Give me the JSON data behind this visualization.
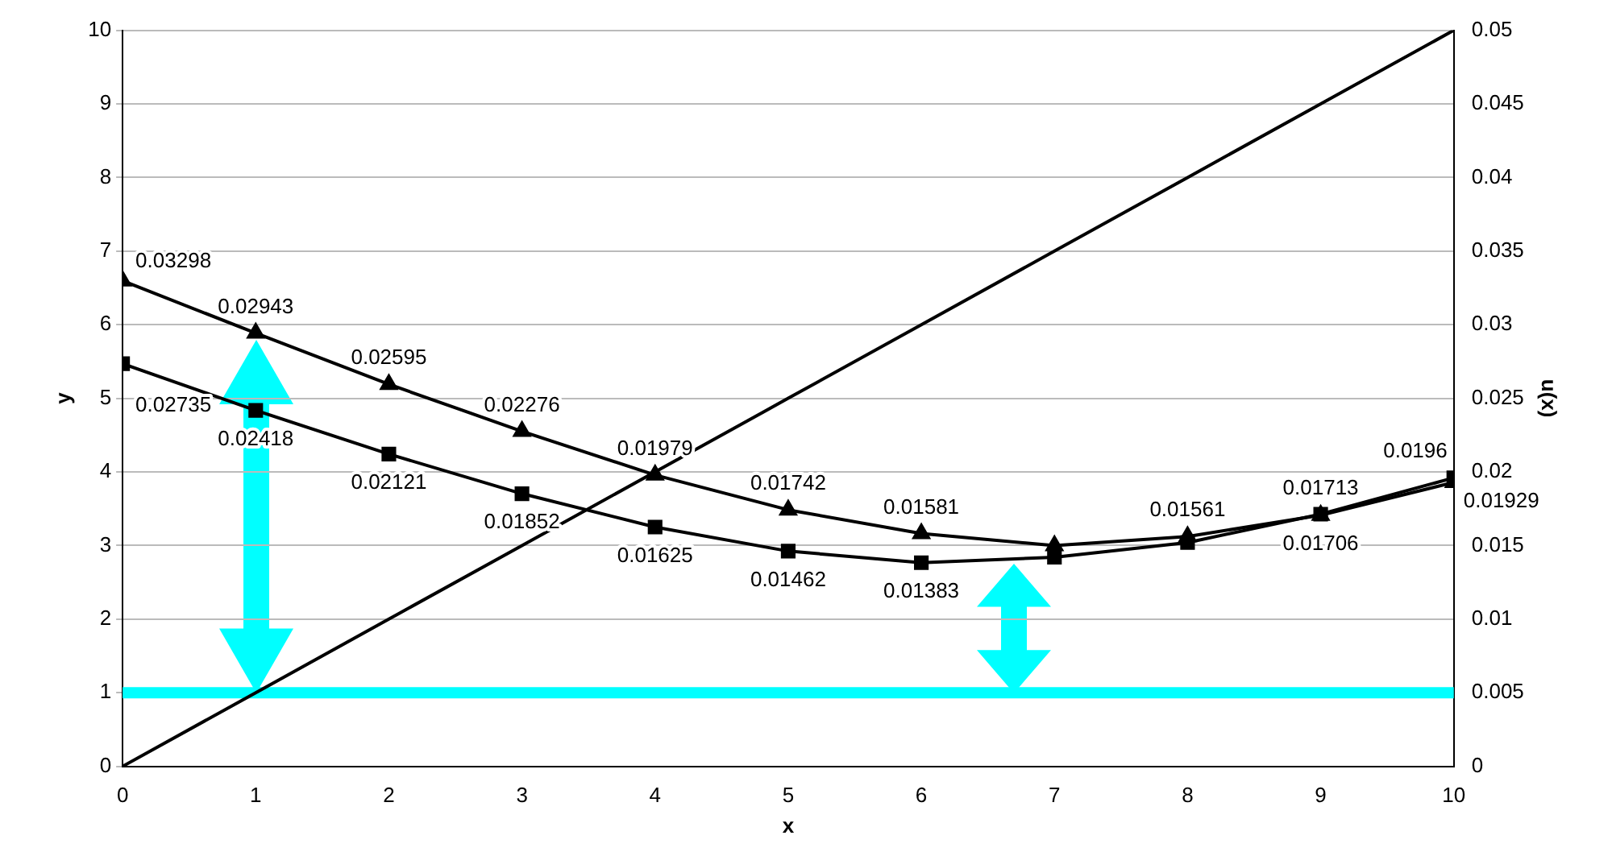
{
  "chart_data": {
    "type": "line",
    "xlabel": "x",
    "ylabel": "y",
    "y2label": "u(x)",
    "xlim": [
      0,
      10
    ],
    "xticks": [
      0,
      1,
      2,
      3,
      4,
      5,
      6,
      7,
      8,
      9,
      10
    ],
    "ylim": [
      0,
      10
    ],
    "yticks": [
      0,
      1,
      2,
      3,
      4,
      5,
      6,
      7,
      8,
      9,
      10
    ],
    "y2lim": [
      0,
      0.05
    ],
    "y2ticks": [
      0,
      0.005,
      0.01,
      0.015,
      0.02,
      0.025,
      0.03,
      0.035,
      0.04,
      0.045,
      0.05
    ],
    "grid": "y",
    "legend": false,
    "line_style": "solid",
    "ref_lines": [
      {
        "axis": "y",
        "value": 1,
        "color": "#00ffff"
      }
    ],
    "series": [
      {
        "color": "#000000",
        "marker": "none",
        "x": [
          0,
          1,
          2,
          3,
          4,
          5,
          6,
          7,
          8,
          9,
          10
        ],
        "values": [
          0,
          1,
          2,
          3,
          4,
          5,
          6,
          7,
          8,
          9,
          10
        ]
      },
      {
        "color": "#000000",
        "marker": "triangle",
        "axis": "y2",
        "x": [
          0,
          1,
          2,
          3,
          4,
          5,
          6,
          7,
          8,
          9,
          10
        ],
        "values": [
          0.03298,
          0.02943,
          0.02595,
          0.02276,
          0.01979,
          0.01742,
          0.01581,
          0.015,
          0.01561,
          0.01706,
          0.01929
        ],
        "value_labels": [
          "0.03298",
          "0.02943",
          "0.02595",
          "0.02276",
          "0.01979",
          "0.01742",
          "0.01581",
          null,
          "0.01561",
          "0.01706",
          "0.01929"
        ]
      },
      {
        "color": "#000000",
        "marker": "square",
        "axis": "y2",
        "x": [
          0,
          1,
          2,
          3,
          4,
          5,
          6,
          7,
          8,
          9,
          10
        ],
        "values": [
          0.02735,
          0.02418,
          0.02121,
          0.01852,
          0.01625,
          0.01462,
          0.01383,
          0.0142,
          0.0152,
          0.01713,
          0.0196
        ],
        "value_labels": [
          "0.02735",
          "0.02418",
          "0.02121",
          "0.01852",
          "0.01625",
          "0.01462",
          "0.01383",
          null,
          null,
          "0.01713",
          "0.0196"
        ]
      }
    ]
  }
}
